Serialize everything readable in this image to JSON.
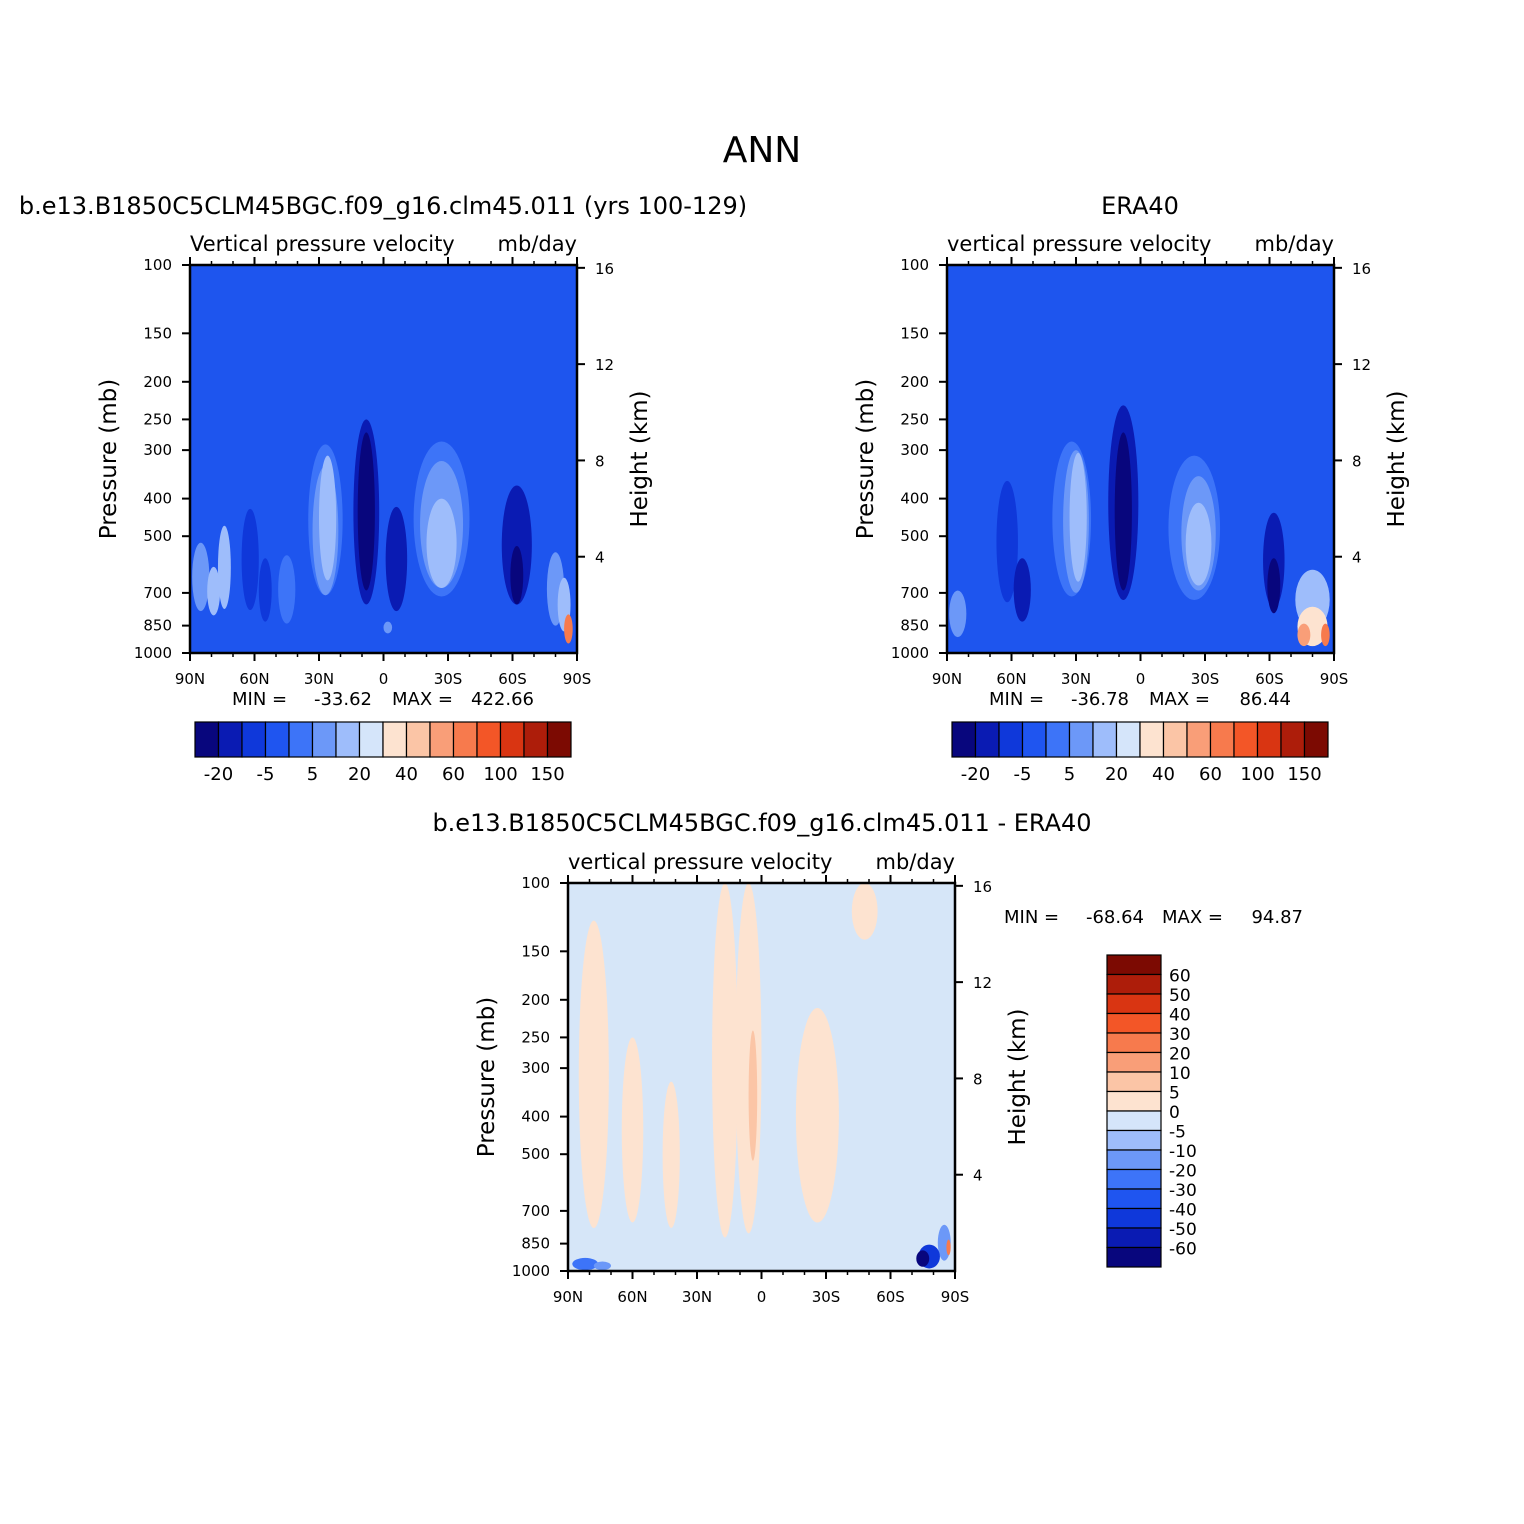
{
  "page_title": "ANN",
  "colors": {
    "blues": [
      "#08067d",
      "#0a1bb3",
      "#0f38da",
      "#1f55f0",
      "#3d74f8",
      "#6c98f8",
      "#9ebdfb",
      "#d5e5fa"
    ],
    "reds": [
      "#fde3d0",
      "#fbc5a6",
      "#f99e78",
      "#f77a4d",
      "#f35627",
      "#d93512",
      "#ad1d0a",
      "#7c0a02"
    ],
    "bg_blue": "#1e55ee",
    "diff_bg": "#d6e6f8"
  },
  "chart_data": [
    {
      "type": "heatmap",
      "id": "model",
      "title": "b.e13.B1850C5CLM45BGC.f09_g16.clm45.011 (yrs 100-129)",
      "subtitle_left": "Vertical pressure velocity",
      "subtitle_right": "mb/day",
      "xlabel": "",
      "ylabel": "Pressure (mb)",
      "y2label": "Height (km)",
      "x_ticks": [
        "90N",
        "60N",
        "30N",
        "0",
        "30S",
        "60S",
        "90S"
      ],
      "x_range": [
        90,
        -90
      ],
      "y_ticks": [
        100,
        150,
        200,
        250,
        300,
        400,
        500,
        700,
        850,
        1000
      ],
      "y_range": [
        1000,
        100
      ],
      "y_scale": "log",
      "y2_ticks": [
        4,
        8,
        12,
        16
      ],
      "min_label": "MIN =",
      "min": "-33.62",
      "max_label": "MAX =",
      "max": "422.66",
      "colorbar": {
        "orientation": "horizontal",
        "levels": [
          -20,
          -15,
          -10,
          -5,
          0,
          5,
          10,
          20,
          30,
          40,
          50,
          60,
          80,
          100,
          120,
          150
        ],
        "labels": [
          "-20",
          "-5",
          "5",
          "20",
          "40",
          "60",
          "100",
          "150"
        ]
      },
      "features": [
        {
          "lat": 85,
          "p": 650,
          "w": 4,
          "h": 260,
          "level": 5
        },
        {
          "lat": 79,
          "p": 700,
          "w": 3,
          "h": 200,
          "level": 6
        },
        {
          "lat": 74,
          "p": 620,
          "w": 3,
          "h": 300,
          "level": 6
        },
        {
          "lat": 62,
          "p": 600,
          "w": 4,
          "h": 350,
          "level": 2
        },
        {
          "lat": 55,
          "p": 700,
          "w": 3,
          "h": 260,
          "level": 2
        },
        {
          "lat": 45,
          "p": 700,
          "w": 4,
          "h": 280,
          "level": 4
        },
        {
          "lat": 27,
          "p": 500,
          "w": 8,
          "h": 420,
          "level": 4
        },
        {
          "lat": 27,
          "p": 520,
          "w": 6,
          "h": 380,
          "level": 5
        },
        {
          "lat": 26,
          "p": 480,
          "w": 4,
          "h": 340,
          "level": 6
        },
        {
          "lat": 8,
          "p": 500,
          "w": 6,
          "h": 500,
          "level": 1
        },
        {
          "lat": 8,
          "p": 480,
          "w": 4,
          "h": 420,
          "level": 0
        },
        {
          "lat": -6,
          "p": 600,
          "w": 5,
          "h": 360,
          "level": 1
        },
        {
          "lat": -2,
          "p": 860,
          "w": 2,
          "h": 60,
          "level": 5
        },
        {
          "lat": -27,
          "p": 500,
          "w": 13,
          "h": 430,
          "level": 4
        },
        {
          "lat": -27,
          "p": 500,
          "w": 10,
          "h": 360,
          "level": 5
        },
        {
          "lat": -27,
          "p": 540,
          "w": 7,
          "h": 280,
          "level": 6
        },
        {
          "lat": -62,
          "p": 560,
          "w": 7,
          "h": 380,
          "level": 1
        },
        {
          "lat": -62,
          "p": 640,
          "w": 3,
          "h": 220,
          "level": 0
        },
        {
          "lat": -80,
          "p": 700,
          "w": 4,
          "h": 300,
          "level": 5
        },
        {
          "lat": -84,
          "p": 760,
          "w": 3,
          "h": 240,
          "level": 6
        },
        {
          "lat": -86,
          "p": 870,
          "w": 2,
          "h": 150,
          "level": 11
        }
      ]
    },
    {
      "type": "heatmap",
      "id": "obs",
      "title": "ERA40",
      "subtitle_left": "vertical pressure velocity",
      "subtitle_right": "mb/day",
      "xlabel": "",
      "ylabel": "Pressure (mb)",
      "y2label": "Height (km)",
      "x_ticks": [
        "90N",
        "60N",
        "30N",
        "0",
        "30S",
        "60S",
        "90S"
      ],
      "x_range": [
        90,
        -90
      ],
      "y_ticks": [
        100,
        150,
        200,
        250,
        300,
        400,
        500,
        700,
        850,
        1000
      ],
      "y_range": [
        1000,
        100
      ],
      "y_scale": "log",
      "y2_ticks": [
        4,
        8,
        12,
        16
      ],
      "min_label": "MIN =",
      "min": "-36.78",
      "max_label": "MAX =",
      "max": "86.44",
      "colorbar": {
        "orientation": "horizontal",
        "levels": [
          -20,
          -15,
          -10,
          -5,
          0,
          5,
          10,
          20,
          30,
          40,
          50,
          60,
          80,
          100,
          120,
          150
        ],
        "labels": [
          "-20",
          "-5",
          "5",
          "20",
          "40",
          "60",
          "100",
          "150"
        ]
      },
      "features": [
        {
          "lat": 85,
          "p": 800,
          "w": 4,
          "h": 220,
          "level": 5
        },
        {
          "lat": 62,
          "p": 550,
          "w": 5,
          "h": 380,
          "level": 2
        },
        {
          "lat": 55,
          "p": 700,
          "w": 4,
          "h": 260,
          "level": 1
        },
        {
          "lat": 32,
          "p": 500,
          "w": 9,
          "h": 430,
          "level": 4
        },
        {
          "lat": 30,
          "p": 500,
          "w": 6,
          "h": 400,
          "level": 5
        },
        {
          "lat": 29,
          "p": 480,
          "w": 4,
          "h": 350,
          "level": 6
        },
        {
          "lat": 8,
          "p": 480,
          "w": 7,
          "h": 500,
          "level": 1
        },
        {
          "lat": 8,
          "p": 480,
          "w": 4,
          "h": 420,
          "level": 0
        },
        {
          "lat": -25,
          "p": 520,
          "w": 12,
          "h": 420,
          "level": 4
        },
        {
          "lat": -27,
          "p": 520,
          "w": 8,
          "h": 340,
          "level": 5
        },
        {
          "lat": -27,
          "p": 540,
          "w": 6,
          "h": 260,
          "level": 6
        },
        {
          "lat": -62,
          "p": 600,
          "w": 5,
          "h": 330,
          "level": 1
        },
        {
          "lat": -62,
          "p": 680,
          "w": 3,
          "h": 220,
          "level": 0
        },
        {
          "lat": -80,
          "p": 740,
          "w": 8,
          "h": 260,
          "level": 6
        },
        {
          "lat": -80,
          "p": 860,
          "w": 7,
          "h": 200,
          "level": 8
        },
        {
          "lat": -76,
          "p": 900,
          "w": 3,
          "h": 120,
          "level": 10
        },
        {
          "lat": -86,
          "p": 900,
          "w": 2,
          "h": 120,
          "level": 11
        }
      ]
    },
    {
      "type": "heatmap",
      "id": "diff",
      "title": "b.e13.B1850C5CLM45BGC.f09_g16.clm45.011 - ERA40",
      "subtitle_left": "vertical pressure velocity",
      "subtitle_right": "mb/day",
      "xlabel": "",
      "ylabel": "Pressure (mb)",
      "y2label": "Height (km)",
      "x_ticks": [
        "90N",
        "60N",
        "30N",
        "0",
        "30S",
        "60S",
        "90S"
      ],
      "x_range": [
        90,
        -90
      ],
      "y_ticks": [
        100,
        150,
        200,
        250,
        300,
        400,
        500,
        700,
        850,
        1000
      ],
      "y_range": [
        1000,
        100
      ],
      "y_scale": "log",
      "y2_ticks": [
        4,
        8,
        12,
        16
      ],
      "min_label": "MIN =",
      "min": "-68.64",
      "max_label": "MAX =",
      "max": "94.87",
      "colorbar": {
        "orientation": "vertical",
        "levels": [
          -60,
          -50,
          -40,
          -30,
          -20,
          -10,
          -5,
          0,
          5,
          10,
          20,
          30,
          40,
          50,
          60
        ],
        "labels": [
          "60",
          "50",
          "40",
          "30",
          "20",
          "10",
          "5",
          "0",
          "-5",
          "-10",
          "-20",
          "-30",
          "-40",
          "-50",
          "-60"
        ]
      },
      "features": [
        {
          "lat": 78,
          "p": 450,
          "w": 7,
          "h": 650,
          "level": 8
        },
        {
          "lat": 60,
          "p": 500,
          "w": 5,
          "h": 500,
          "level": 8
        },
        {
          "lat": 42,
          "p": 550,
          "w": 4,
          "h": 450,
          "level": 8
        },
        {
          "lat": 17,
          "p": 420,
          "w": 6,
          "h": 800,
          "level": 8
        },
        {
          "lat": 6,
          "p": 450,
          "w": 6,
          "h": 700,
          "level": 8
        },
        {
          "lat": 4,
          "p": 380,
          "w": 2,
          "h": 280,
          "level": 9
        },
        {
          "lat": -26,
          "p": 480,
          "w": 10,
          "h": 540,
          "level": 8
        },
        {
          "lat": -48,
          "p": 120,
          "w": 6,
          "h": 40,
          "level": 8
        },
        {
          "lat": -85,
          "p": 850,
          "w": 3,
          "h": 180,
          "level": 5
        },
        {
          "lat": -78,
          "p": 920,
          "w": 5,
          "h": 130,
          "level": 2
        },
        {
          "lat": -75,
          "p": 930,
          "w": 3,
          "h": 90,
          "level": 0
        },
        {
          "lat": -87,
          "p": 870,
          "w": 1,
          "h": 80,
          "level": 11
        },
        {
          "lat": 82,
          "p": 960,
          "w": 6,
          "h": 70,
          "level": 4
        },
        {
          "lat": 74,
          "p": 970,
          "w": 4,
          "h": 50,
          "level": 5
        }
      ]
    }
  ]
}
